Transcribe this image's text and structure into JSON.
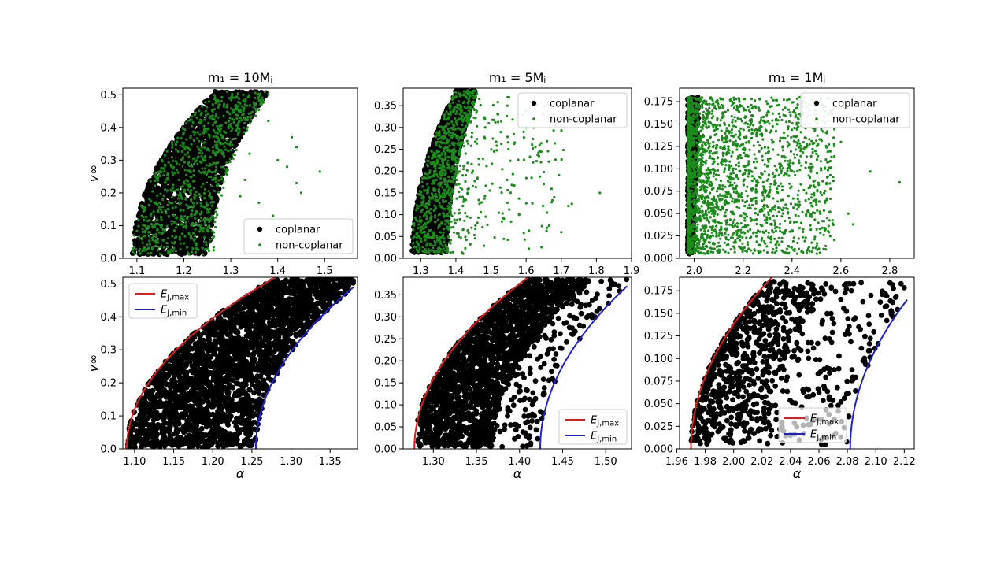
{
  "chart_data": [
    {
      "id": "top-left",
      "type": "scatter",
      "title": "m₁ = 10Mⱼ",
      "xlabel": "",
      "ylabel": "v∞",
      "xlim": [
        1.07,
        1.57
      ],
      "ylim": [
        0.0,
        0.52
      ],
      "xticks": [
        1.1,
        1.2,
        1.3,
        1.4,
        1.5
      ],
      "xtick_labels": [
        "1.1",
        "1.2",
        "1.3",
        "1.4",
        "1.5"
      ],
      "yticks": [
        0.0,
        0.1,
        0.2,
        0.3,
        0.4,
        0.5
      ],
      "ytick_labels": [
        "0.0",
        "0.1",
        "0.2",
        "0.3",
        "0.4",
        "0.5"
      ],
      "legend": {
        "position": "lower-right",
        "entries": [
          "coplanar",
          "non-coplanar"
        ]
      },
      "grid": false,
      "band": {
        "x_left_min": 1.09,
        "x_right_min": 1.255,
        "x_left_max": 1.265,
        "x_right_max": 1.38,
        "y_max": 0.51,
        "exponent": 0.5
      },
      "series": [
        {
          "name": "coplanar",
          "color": "#000000",
          "marker_size": 3.2,
          "density": "dense band",
          "sample_points": [
            [
              1.1,
              0.02
            ],
            [
              1.15,
              0.25
            ],
            [
              1.2,
              0.4
            ],
            [
              1.25,
              0.48
            ],
            [
              1.3,
              0.45
            ],
            [
              1.35,
              0.49
            ],
            [
              1.25,
              0.02
            ],
            [
              1.2,
              0.1
            ],
            [
              1.28,
              0.35
            ],
            [
              1.33,
              0.48
            ]
          ]
        },
        {
          "name": "non-coplanar",
          "color": "#1a8c1a",
          "marker_size": 1.6,
          "density": "within band plus outliers",
          "outliers": [
            [
              1.38,
              0.42
            ],
            [
              1.43,
              0.37
            ],
            [
              1.44,
              0.34
            ],
            [
              1.42,
              0.28
            ],
            [
              1.49,
              0.265
            ],
            [
              1.45,
              0.2
            ],
            [
              1.44,
              0.23
            ],
            [
              1.39,
              0.13
            ],
            [
              1.34,
              0.32
            ],
            [
              1.33,
              0.24
            ],
            [
              1.36,
              0.17
            ],
            [
              1.32,
              0.19
            ],
            [
              1.4,
              0.3
            ]
          ]
        }
      ]
    },
    {
      "id": "top-middle",
      "type": "scatter",
      "title": "m₁ = 5Mⱼ",
      "xlabel": "",
      "ylabel": "",
      "xlim": [
        1.25,
        1.9
      ],
      "ylim": [
        0.0,
        0.39
      ],
      "xticks": [
        1.3,
        1.4,
        1.5,
        1.6,
        1.7,
        1.8,
        1.9
      ],
      "xtick_labels": [
        "1.3",
        "1.4",
        "1.5",
        "1.6",
        "1.7",
        "1.8",
        "1.9"
      ],
      "yticks": [
        0.0,
        0.05,
        0.1,
        0.15,
        0.2,
        0.25,
        0.3,
        0.35
      ],
      "ytick_labels": [
        "0.00",
        "0.05",
        "0.10",
        "0.15",
        "0.20",
        "0.25",
        "0.30",
        "0.35"
      ],
      "legend": {
        "position": "top-right",
        "entries": [
          "coplanar",
          "non-coplanar"
        ]
      },
      "grid": false,
      "band": {
        "x_left_min": 1.275,
        "x_right_min": 1.375,
        "x_left_max": 1.4,
        "x_right_max": 1.46,
        "y_max": 0.385,
        "exponent": 0.5
      },
      "series": [
        {
          "name": "coplanar",
          "color": "#000000",
          "marker_size": 3.2,
          "density": "dense band"
        },
        {
          "name": "non-coplanar",
          "color": "#1a8c1a",
          "marker_size": 1.6,
          "density": "within band plus spread to x=1.81",
          "outliers": [
            [
              1.81,
              0.15
            ],
            [
              1.72,
              0.12
            ],
            [
              1.73,
              0.125
            ],
            [
              1.7,
              0.06
            ],
            [
              1.65,
              0.17
            ],
            [
              1.62,
              0.22
            ],
            [
              1.6,
              0.3
            ],
            [
              1.55,
              0.25
            ],
            [
              1.58,
              0.1
            ],
            [
              1.52,
              0.33
            ],
            [
              1.66,
              0.07
            ],
            [
              1.68,
              0.14
            ]
          ]
        }
      ]
    },
    {
      "id": "top-right",
      "type": "scatter",
      "title": "m₁ = 1Mⱼ",
      "xlabel": "",
      "ylabel": "",
      "xlim": [
        1.94,
        2.9
      ],
      "ylim": [
        0.0,
        0.19
      ],
      "xticks": [
        2.0,
        2.2,
        2.4,
        2.6,
        2.8
      ],
      "xtick_labels": [
        "2.0",
        "2.2",
        "2.4",
        "2.6",
        "2.8"
      ],
      "yticks": [
        0.0,
        0.025,
        0.05,
        0.075,
        0.1,
        0.125,
        0.15,
        0.175
      ],
      "ytick_labels": [
        "0.000",
        "0.025",
        "0.050",
        "0.075",
        "0.100",
        "0.125",
        "0.150",
        "0.175"
      ],
      "legend": {
        "position": "top-right",
        "entries": [
          "coplanar",
          "non-coplanar"
        ]
      },
      "grid": false,
      "series": [
        {
          "name": "coplanar",
          "color": "#000000",
          "marker_size": 3.2,
          "density": "narrow band near x=1.97-2.03"
        },
        {
          "name": "non-coplanar",
          "color": "#1a8c1a",
          "marker_size": 1.6,
          "density": "dense near x=2.0 fading to x=2.84",
          "outliers": [
            [
              2.84,
              0.085
            ],
            [
              2.72,
              0.097
            ],
            [
              2.65,
              0.038
            ],
            [
              2.63,
              0.05
            ],
            [
              2.6,
              0.13
            ],
            [
              2.55,
              0.12
            ],
            [
              2.5,
              0.06
            ]
          ]
        }
      ]
    },
    {
      "id": "bottom-left",
      "type": "scatter",
      "title": "",
      "xlabel": "α",
      "ylabel": "v∞",
      "xlim": [
        1.085,
        1.385
      ],
      "ylim": [
        0.0,
        0.52
      ],
      "xticks": [
        1.1,
        1.15,
        1.2,
        1.25,
        1.3,
        1.35
      ],
      "xtick_labels": [
        "1.10",
        "1.15",
        "1.20",
        "1.25",
        "1.30",
        "1.35"
      ],
      "yticks": [
        0.0,
        0.1,
        0.2,
        0.3,
        0.4,
        0.5
      ],
      "ytick_labels": [
        "0.0",
        "0.1",
        "0.2",
        "0.3",
        "0.4",
        "0.5"
      ],
      "legend": {
        "position": "top-left",
        "entries": [
          "E_J,max",
          "E_J,min"
        ]
      },
      "grid": false,
      "curves": [
        {
          "name": "E_J,max",
          "color": "#e41a1c",
          "x_start": 1.09,
          "x_end": 1.28,
          "y_end": 0.52,
          "exponent": 0.5
        },
        {
          "name": "E_J,min",
          "color": "#1f1fd0",
          "x_start": 1.255,
          "x_end": 1.38,
          "y_end": 0.49,
          "exponent": 0.5
        }
      ],
      "series": [
        {
          "name": "coplanar",
          "color": "#000000",
          "marker_size": 3.4,
          "density": "fills region between curves"
        }
      ]
    },
    {
      "id": "bottom-middle",
      "type": "scatter",
      "title": "",
      "xlabel": "α",
      "ylabel": "",
      "xlim": [
        1.265,
        1.53
      ],
      "ylim": [
        0.0,
        0.39
      ],
      "xticks": [
        1.3,
        1.35,
        1.4,
        1.45,
        1.5
      ],
      "xtick_labels": [
        "1.30",
        "1.35",
        "1.40",
        "1.45",
        "1.50"
      ],
      "yticks": [
        0.0,
        0.05,
        0.1,
        0.15,
        0.2,
        0.25,
        0.3,
        0.35
      ],
      "ytick_labels": [
        "0.00",
        "0.05",
        "0.10",
        "0.15",
        "0.20",
        "0.25",
        "0.30",
        "0.35"
      ],
      "legend": {
        "position": "lower-right",
        "entries": [
          "E_J,max",
          "E_J,min"
        ]
      },
      "grid": false,
      "curves": [
        {
          "name": "E_J,max",
          "color": "#e41a1c",
          "x_start": 1.278,
          "x_end": 1.41,
          "y_end": 0.39,
          "exponent": 0.5
        },
        {
          "name": "E_J,min",
          "color": "#1f1fd0",
          "x_start": 1.424,
          "x_end": 1.525,
          "y_end": 0.37,
          "exponent": 0.5
        }
      ],
      "series": [
        {
          "name": "coplanar",
          "color": "#000000",
          "marker_size": 3.4,
          "density": "dense band near E_J,max, sparse toward E_J,min"
        }
      ]
    },
    {
      "id": "bottom-right",
      "type": "scatter",
      "title": "",
      "xlabel": "α",
      "ylabel": "",
      "xlim": [
        1.962,
        2.127
      ],
      "ylim": [
        0.0,
        0.19
      ],
      "xticks": [
        1.96,
        1.98,
        2.0,
        2.02,
        2.04,
        2.06,
        2.08,
        2.1,
        2.12
      ],
      "xtick_labels": [
        "1.96",
        "1.98",
        "2.00",
        "2.02",
        "2.04",
        "2.06",
        "2.08",
        "2.10",
        "2.12"
      ],
      "yticks": [
        0.0,
        0.025,
        0.05,
        0.075,
        0.1,
        0.125,
        0.15,
        0.175
      ],
      "ytick_labels": [
        "0.000",
        "0.025",
        "0.050",
        "0.075",
        "0.100",
        "0.125",
        "0.150",
        "0.175"
      ],
      "legend": {
        "position": "lower-center",
        "entries": [
          "E_J,max",
          "E_J,min"
        ]
      },
      "grid": false,
      "curves": [
        {
          "name": "E_J,max",
          "color": "#e41a1c",
          "x_start": 1.97,
          "x_end": 2.027,
          "y_end": 0.19,
          "exponent": 0.5
        },
        {
          "name": "E_J,min",
          "color": "#1f1fd0",
          "x_start": 2.082,
          "x_end": 2.122,
          "y_end": 0.165,
          "exponent": 0.5
        }
      ],
      "series": [
        {
          "name": "coplanar",
          "color": "#000000",
          "marker_size": 3.4,
          "density": "dense near E_J,max, sparse to E_J,min"
        }
      ]
    }
  ],
  "colors": {
    "coplanar": "#000000",
    "non_coplanar": "#1a8c1a",
    "ej_max": "#e41a1c",
    "ej_min": "#1f1fd0"
  }
}
